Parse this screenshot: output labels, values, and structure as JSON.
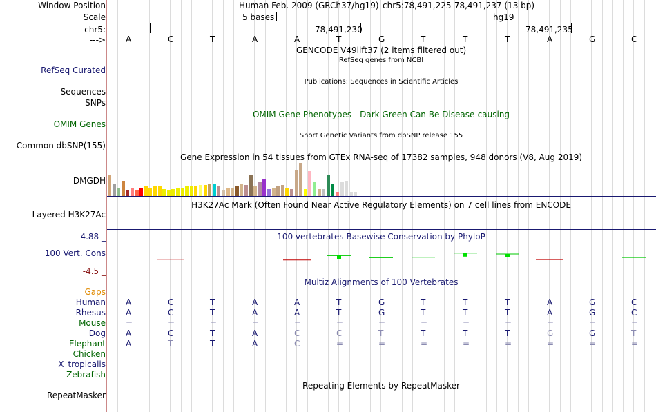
{
  "header": {
    "window_position_label": "Window Position",
    "assembly_text": "Human Feb. 2009 (GRCh37/hg19)",
    "position_text": "chr5:78,491,225-78,491,237 (13 bp)",
    "scale_label": "Scale",
    "scale_text": "5 bases",
    "scale_db": "hg19",
    "chrom_label": "chr5:",
    "coord_1": "78,491,230",
    "coord_2": "78,491,235",
    "strand_label": "--->",
    "bases": [
      "A",
      "C",
      "T",
      "A",
      "A",
      "T",
      "G",
      "T",
      "T",
      "T",
      "A",
      "G",
      "C"
    ]
  },
  "tracks": {
    "gencode_title": "GENCODE V49lift37 (2 items filtered out)",
    "refseq_title": "RefSeq genes from NCBI",
    "refseq_label": "RefSeq Curated",
    "publications_title": "Publications: Sequences in Scientific Articles",
    "sequences_label": "Sequences",
    "snps_label": "SNPs",
    "omim_title": "OMIM Gene Phenotypes - Dark Green Can Be Disease-causing",
    "omim_label": "OMIM Genes",
    "dbsnp_title": "Short Genetic Variants from dbSNP release 155",
    "dbsnp_label": "Common dbSNP(155)",
    "gtex_title": "Gene Expression in 54 tissues from GTEx RNA-seq of 17382 samples, 948 donors (V8, Aug 2019)",
    "gtex_label": "DMGDH",
    "h3k27_title": "H3K27Ac Mark (Often Found Near Active Regulatory Elements) on 7 cell lines from ENCODE",
    "h3k27_label": "Layered H3K27Ac",
    "phylop_title": "100 vertebrates Basewise Conservation by PhyloP",
    "phylop_label": "100 Vert. Cons",
    "phylop_max": "4.88 _",
    "phylop_min": "-4.5 _",
    "multiz_title": "Multiz Alignments of 100 Vertebrates",
    "gaps_label": "Gaps",
    "repeat_title": "Repeating Elements by RepeatMasker",
    "repeat_label": "RepeatMasker"
  },
  "gtex_values": [
    30,
    18,
    12,
    22,
    8,
    12,
    9,
    12,
    14,
    12,
    14,
    14,
    10,
    8,
    10,
    12,
    12,
    14,
    14,
    14,
    16,
    16,
    18,
    18,
    14,
    8,
    12,
    12,
    14,
    18,
    16,
    30,
    14,
    20,
    24,
    10,
    12,
    14,
    16,
    12,
    10,
    38,
    48,
    10,
    36,
    20,
    10,
    10,
    30,
    18,
    6,
    20,
    22,
    6,
    6
  ],
  "gtex_colors": [
    "#d2a679",
    "#a0a0a0",
    "#8fbc8f",
    "#cd853f",
    "#a52a2a",
    "#ff7f7f",
    "#ff6347",
    "#ff0000",
    "#ffd700",
    "#ffd700",
    "#ffd700",
    "#ffd700",
    "#eeee00",
    "#eeee00",
    "#eeee00",
    "#eeee00",
    "#eeee00",
    "#eeee00",
    "#eeee00",
    "#ffd700",
    "#ffff66",
    "#ffd700",
    "#c0a060",
    "#00ced1",
    "#bc8f8f",
    "#d3c0a8",
    "#deb887",
    "#d2b48c",
    "#8b5a2b",
    "#d2b48c",
    "#bc8f8f",
    "#8b7355",
    "#d2b48c",
    "#b08aa0",
    "#9932cc",
    "#9370db",
    "#d2b48c",
    "#c0a080",
    "#c4a484",
    "#ffd700",
    "#bc8f8f",
    "#c8a888",
    "#c8a888",
    "#ffff00",
    "#ffb6c1",
    "#90ee90",
    "#d2b48c",
    "#c0c0c0",
    "#2e8b57",
    "#008b45",
    "#ff7f7f",
    "#dcdcdc",
    "#dcdcdc",
    "#dcdcdc",
    "#dcdcdc"
  ],
  "species": [
    {
      "name": "Human",
      "color": "#191970",
      "seq": [
        "A",
        "C",
        "T",
        "A",
        "A",
        "T",
        "G",
        "T",
        "T",
        "T",
        "A",
        "G",
        "C"
      ]
    },
    {
      "name": "Rhesus",
      "color": "#191970",
      "seq": [
        "A",
        "C",
        "T",
        "A",
        "A",
        "T",
        "G",
        "T",
        "T",
        "T",
        "A",
        "G",
        "C"
      ]
    },
    {
      "name": "Mouse",
      "color": "#006400",
      "seq": [
        "=",
        "=",
        "=",
        "=",
        "=",
        "=",
        "=",
        "=",
        "=",
        "=",
        "=",
        "=",
        "="
      ]
    },
    {
      "name": "Dog",
      "color": "#191970",
      "seq": [
        "A",
        "C",
        "T",
        "A",
        "C",
        "C",
        "T",
        "T",
        "T",
        "T",
        "G",
        "G",
        "T"
      ]
    },
    {
      "name": "Elephant",
      "color": "#006400",
      "seq": [
        "A",
        "T",
        "T",
        "A",
        "C",
        "=",
        "=",
        "=",
        "=",
        "=",
        "=",
        "=",
        "="
      ]
    },
    {
      "name": "Chicken",
      "color": "#006400",
      "seq": [
        "",
        "",
        "",
        "",
        "",
        "",
        "",
        "",
        "",
        "",
        "",
        "",
        ""
      ]
    },
    {
      "name": "X_tropicalis",
      "color": "#191970",
      "seq": [
        "",
        "",
        "",
        "",
        "",
        "",
        "",
        "",
        "",
        "",
        "",
        "",
        ""
      ]
    },
    {
      "name": "Zebrafish",
      "color": "#006400",
      "seq": [
        "",
        "",
        "",
        "",
        "",
        "",
        "",
        "",
        "",
        "",
        "",
        "",
        ""
      ]
    }
  ],
  "species_highlight": [
    [
      1,
      1,
      1,
      1,
      1,
      1,
      1,
      1,
      1,
      1,
      1,
      1,
      1
    ],
    [
      1,
      1,
      1,
      1,
      1,
      1,
      1,
      1,
      1,
      1,
      1,
      1,
      1
    ],
    [
      0,
      0,
      0,
      0,
      0,
      0,
      0,
      0,
      0,
      0,
      0,
      0,
      0
    ],
    [
      1,
      1,
      1,
      1,
      0,
      0,
      0,
      1,
      1,
      1,
      0,
      1,
      0
    ],
    [
      1,
      0,
      1,
      1,
      0,
      0,
      0,
      0,
      0,
      0,
      0,
      0,
      0
    ],
    [
      0,
      0,
      0,
      0,
      0,
      0,
      0,
      0,
      0,
      0,
      0,
      0,
      0
    ],
    [
      0,
      0,
      0,
      0,
      0,
      0,
      0,
      0,
      0,
      0,
      0,
      0,
      0
    ],
    [
      0,
      0,
      0,
      0,
      0,
      0,
      0,
      0,
      0,
      0,
      0,
      0,
      0
    ]
  ],
  "phylop_scores": [
    -0.5,
    -0.6,
    0,
    -0.5,
    -0.9,
    1.2,
    0.2,
    0.4,
    2.4,
    2.0,
    -0.7,
    0,
    0.3
  ],
  "colors": {
    "navy": "#191970",
    "green": "#006400",
    "orange": "#e08a00",
    "maroon": "#8b1a1a"
  }
}
